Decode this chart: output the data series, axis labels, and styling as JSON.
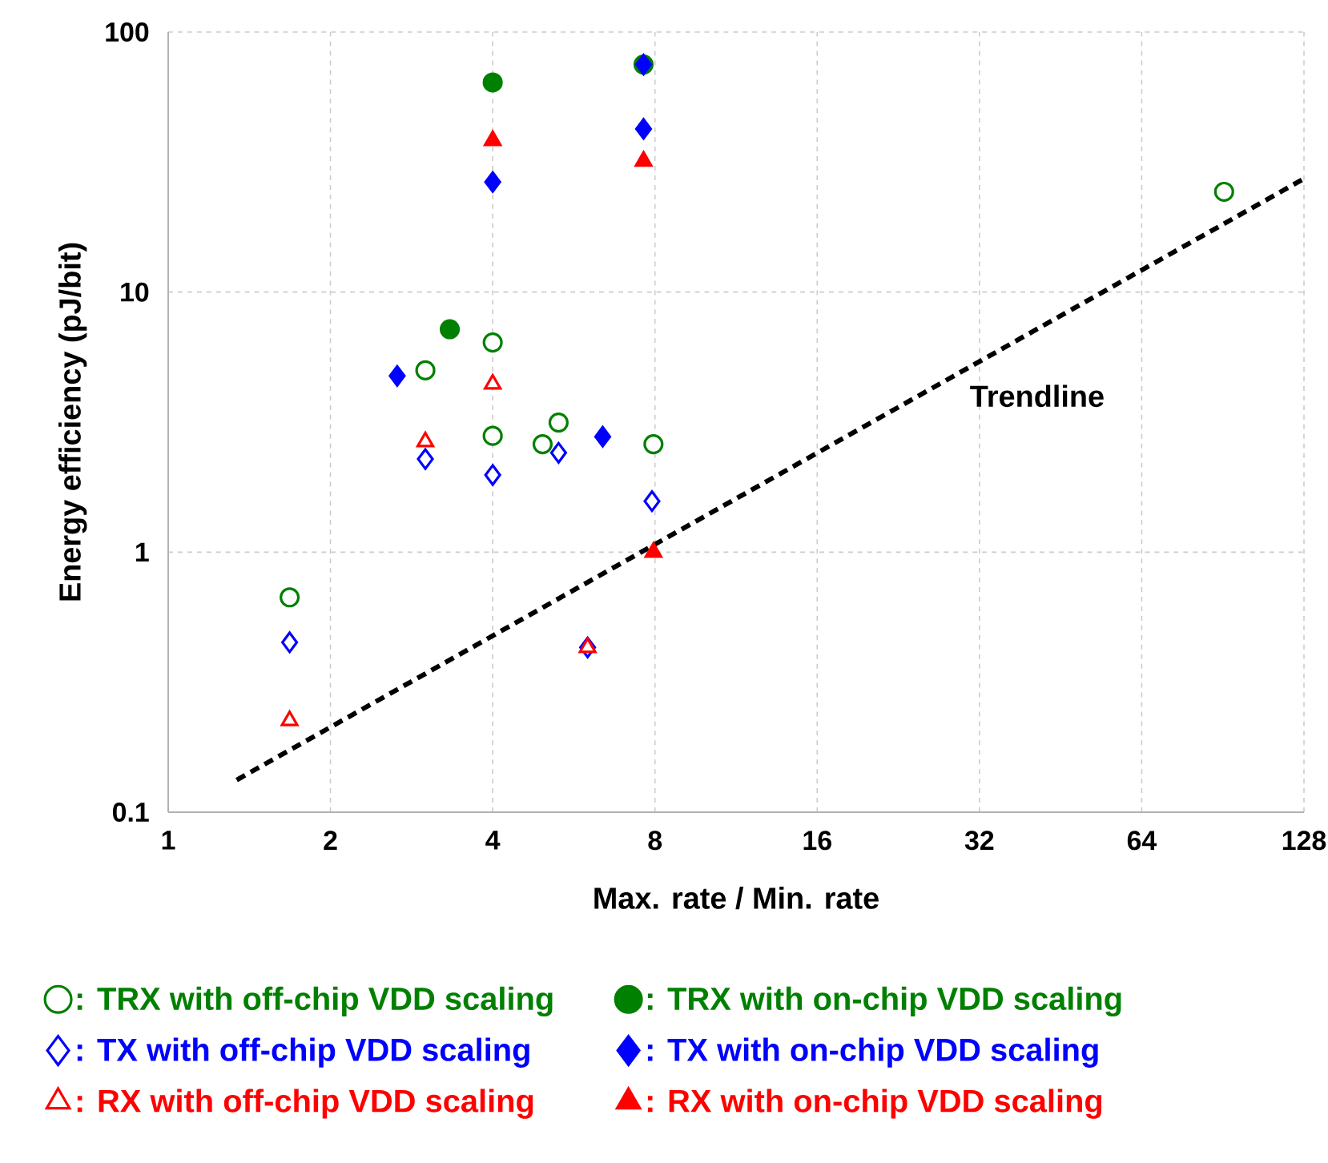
{
  "chart_data": {
    "type": "scatter",
    "xlabel": "Max. rate / Min. rate",
    "ylabel": "Energy efficiency (pJ/bit)",
    "log": "xy",
    "grid": true,
    "legend": "bottom",
    "xlim": [
      1,
      128
    ],
    "ylim": [
      0.1,
      100
    ],
    "xticks": [
      1,
      2,
      4,
      8,
      16,
      32,
      64,
      128
    ],
    "yticks": [
      0.1,
      1,
      10,
      100
    ],
    "series": [
      {
        "name": ": TRX with off-chip VDD scaling",
        "color": "#008000",
        "marker": "circle-open",
        "x": [
          1.68,
          3.0,
          4,
          4,
          4.95,
          5.3,
          7.95,
          91
        ],
        "values": [
          0.67,
          5.0,
          6.4,
          2.8,
          2.6,
          3.15,
          2.6,
          24.3
        ]
      },
      {
        "name": ": TRX with on-chip VDD scaling",
        "color": "#008000",
        "marker": "circle",
        "x": [
          3.33,
          4,
          7.62
        ],
        "values": [
          7.2,
          64,
          75
        ]
      },
      {
        "name": ": TX with off-chip VDD scaling",
        "color": "#0000ff",
        "marker": "diamond-open",
        "x": [
          1.68,
          3.0,
          4,
          5.3,
          6.0,
          7.9
        ],
        "values": [
          0.45,
          2.28,
          1.98,
          2.41,
          0.43,
          1.57
        ]
      },
      {
        "name": ": TX with on-chip VDD scaling",
        "color": "#0000ff",
        "marker": "diamond",
        "x": [
          2.66,
          4,
          6.4,
          7.62,
          7.62
        ],
        "values": [
          4.76,
          26.5,
          2.78,
          42.4,
          75
        ]
      },
      {
        "name": ": RX with off-chip VDD scaling",
        "color": "#ff0000",
        "marker": "triangle-open",
        "x": [
          1.68,
          3.0,
          4,
          6.0
        ],
        "values": [
          0.225,
          2.66,
          4.43,
          0.43
        ]
      },
      {
        "name": ": RX with on-chip VDD scaling",
        "color": "#ff0000",
        "marker": "triangle",
        "x": [
          4,
          7.62,
          7.95
        ],
        "values": [
          38.3,
          31.9,
          1.0
        ]
      },
      {
        "name": "Trendline",
        "type": "line",
        "color": "#000000",
        "line_style": "dashed",
        "marker": "none",
        "x": [
          1.34,
          128
        ],
        "values": [
          0.133,
          27.3
        ]
      }
    ]
  }
}
